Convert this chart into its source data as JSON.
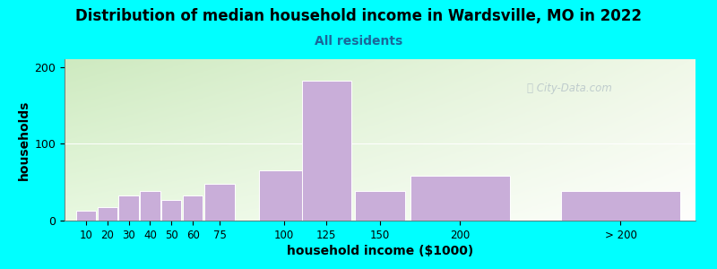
{
  "title": "Distribution of median household income in Wardsville, MO in 2022",
  "subtitle": "All residents",
  "xlabel": "household income ($1000)",
  "ylabel": "households",
  "title_fontsize": 12,
  "subtitle_fontsize": 10,
  "label_fontsize": 10,
  "background_color": "#00FFFF",
  "bar_color": "#c9aed9",
  "bar_edge_color": "#ffffff",
  "categories": [
    "10",
    "20",
    "30",
    "40",
    "50",
    "60",
    "75",
    "100",
    "125",
    "150",
    "200",
    "> 200"
  ],
  "values": [
    13,
    18,
    33,
    38,
    27,
    33,
    48,
    65,
    182,
    38,
    58,
    38
  ],
  "bar_lefts": [
    5,
    15,
    25,
    35,
    45,
    55,
    65,
    90,
    110,
    135,
    160,
    230
  ],
  "bar_widths": [
    10,
    10,
    10,
    10,
    10,
    10,
    15,
    25,
    25,
    25,
    50,
    60
  ],
  "yticks": [
    0,
    100,
    200
  ],
  "ylim": [
    0,
    210
  ],
  "xlim": [
    0,
    295
  ],
  "watermark": "City-Data.com"
}
